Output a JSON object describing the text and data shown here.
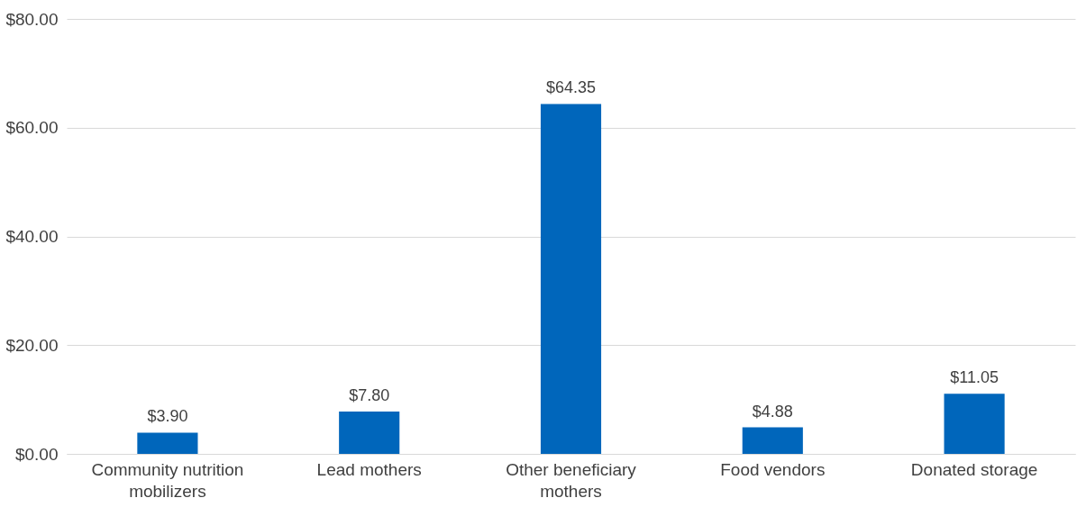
{
  "chart_data": {
    "type": "bar",
    "categories": [
      "Community nutrition mobilizers",
      "Lead mothers",
      "Other beneficiary mothers",
      "Food vendors",
      "Donated storage"
    ],
    "values": [
      3.9,
      7.8,
      64.35,
      4.88,
      11.05
    ],
    "value_labels": [
      "$3.90",
      "$7.80",
      "$64.35",
      "$4.88",
      "$11.05"
    ],
    "color": "#0066bb",
    "ylim": [
      0,
      80
    ],
    "yticks": [
      {
        "value": 0,
        "label": "$0.00"
      },
      {
        "value": 20,
        "label": "$20.00"
      },
      {
        "value": 40,
        "label": "$40.00"
      },
      {
        "value": 60,
        "label": "$60.00"
      },
      {
        "value": 80,
        "label": "$80.00"
      }
    ],
    "grid": "y"
  }
}
